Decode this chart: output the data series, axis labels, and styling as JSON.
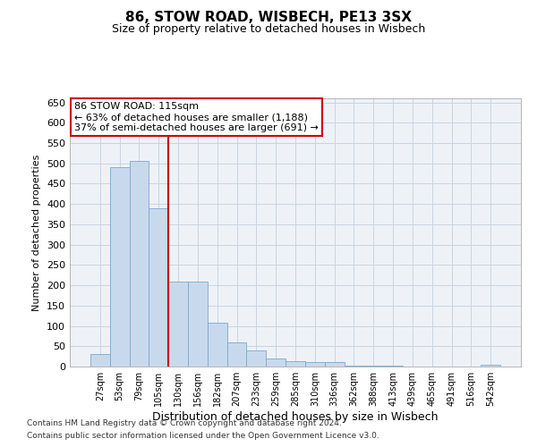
{
  "title1": "86, STOW ROAD, WISBECH, PE13 3SX",
  "title2": "Size of property relative to detached houses in Wisbech",
  "xlabel": "Distribution of detached houses by size in Wisbech",
  "ylabel": "Number of detached properties",
  "footnote1": "Contains HM Land Registry data © Crown copyright and database right 2024.",
  "footnote2": "Contains public sector information licensed under the Open Government Licence v3.0.",
  "categories": [
    "27sqm",
    "53sqm",
    "79sqm",
    "105sqm",
    "130sqm",
    "156sqm",
    "182sqm",
    "207sqm",
    "233sqm",
    "259sqm",
    "285sqm",
    "310sqm",
    "336sqm",
    "362sqm",
    "388sqm",
    "413sqm",
    "439sqm",
    "465sqm",
    "491sqm",
    "516sqm",
    "542sqm"
  ],
  "values": [
    30,
    490,
    505,
    390,
    210,
    210,
    107,
    60,
    40,
    20,
    13,
    12,
    10,
    2,
    2,
    2,
    1,
    1,
    1,
    1,
    5
  ],
  "bar_color": "#c9d9ed",
  "bar_edge_color": "#7aa8cc",
  "grid_color": "#c8d4e0",
  "background_color": "#eef2f7",
  "red_line_x": 3.5,
  "annotation_line1": "86 STOW ROAD: 115sqm",
  "annotation_line2": "← 63% of detached houses are smaller (1,188)",
  "annotation_line3": "37% of semi-detached houses are larger (691) →",
  "annotation_box_color": "#ffffff",
  "annotation_box_edge": "#cc0000",
  "red_line_color": "#cc0000",
  "ylim": [
    0,
    660
  ],
  "yticks": [
    0,
    50,
    100,
    150,
    200,
    250,
    300,
    350,
    400,
    450,
    500,
    550,
    600,
    650
  ]
}
